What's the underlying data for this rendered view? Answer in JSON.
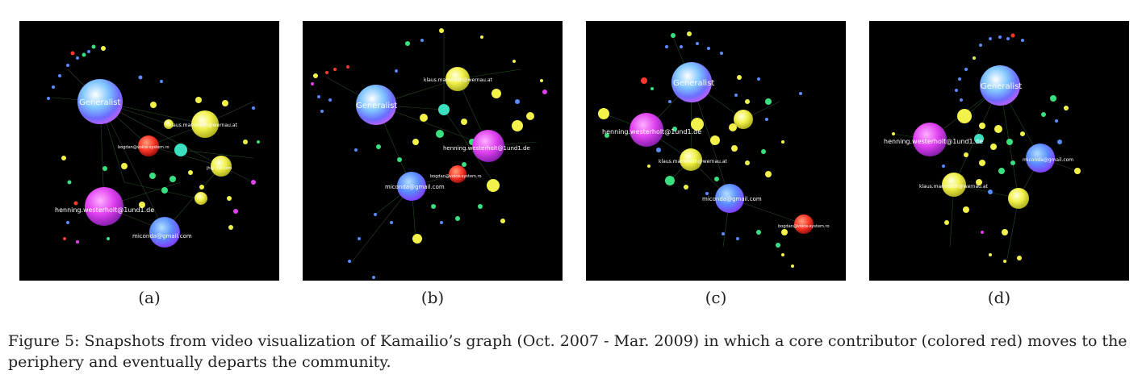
{
  "figure": {
    "panels": [
      {
        "id": "a",
        "label": "(a)",
        "nodes": [
          {
            "name": "Generalist",
            "label": "Generalist",
            "color": "#6ab0ff"
          },
          {
            "name": "klaus",
            "label": "klaus.mammoth@wernau.at",
            "color": "#f2f24a"
          },
          {
            "name": "bogdan",
            "label": "bogdan@voice-system.ro",
            "color": "#ff3a2a"
          },
          {
            "name": "jh",
            "label": "jh@..tel.com",
            "color": "#f2f24a"
          },
          {
            "name": "henning",
            "label": "henning.westerholt@1und1.de",
            "color": "#e040f0"
          },
          {
            "name": "miconda",
            "label": "miconda@gmail.com",
            "color": "#5a8cff"
          }
        ]
      },
      {
        "id": "b",
        "label": "(b)",
        "nodes": [
          {
            "name": "Generalist",
            "label": "Generalist",
            "color": "#6ab0ff"
          },
          {
            "name": "klaus",
            "label": "klaus.mammoth@wernau.at",
            "color": "#f2f24a"
          },
          {
            "name": "henning",
            "label": "henning.westerholt@1und1.de",
            "color": "#e040f0"
          },
          {
            "name": "bogdan",
            "label": "bogdan@voice-system.ro",
            "color": "#ff3a2a"
          },
          {
            "name": "miconda",
            "label": "miconda@gmail.com",
            "color": "#5a8cff"
          }
        ]
      },
      {
        "id": "c",
        "label": "(c)",
        "nodes": [
          {
            "name": "Generalist",
            "label": "Generalist",
            "color": "#6ab0ff"
          },
          {
            "name": "henning",
            "label": "henning.westerholt@1und1.de",
            "color": "#e040f0"
          },
          {
            "name": "klaus",
            "label": "klaus.mammoth@wernau.at",
            "color": "#f2f24a"
          },
          {
            "name": "miconda",
            "label": "miconda@gmail.com",
            "color": "#5a8cff"
          },
          {
            "name": "bogdan",
            "label": "bogdan@voice-system.ro",
            "color": "#ff3a2a"
          }
        ]
      },
      {
        "id": "d",
        "label": "(d)",
        "nodes": [
          {
            "name": "Generalist",
            "label": "Generalist",
            "color": "#6ab0ff"
          },
          {
            "name": "henning",
            "label": "henning.westerholt@1und1.de",
            "color": "#e040f0"
          },
          {
            "name": "miconda",
            "label": "miconda@gmail.com",
            "color": "#5a8cff"
          },
          {
            "name": "klaus",
            "label": "klaus.mammoth@wernau.at",
            "color": "#f2f24a"
          }
        ]
      }
    ],
    "caption": "Figure 5: Snapshots from video visualization of Kamailio’s graph (Oct. 2007 - Mar. 2009) in which a core contributor (colored red) moves to the periphery and eventually departs the community."
  }
}
